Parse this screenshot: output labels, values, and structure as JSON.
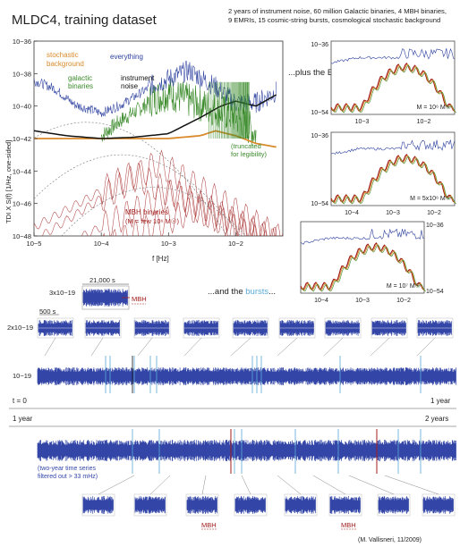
{
  "header": {
    "title": "MLDC4, training dataset",
    "description_lines": [
      "2 years of instrument noise, 60 million Galactic binaries, 4 MBH binaries,",
      "9 EMRIs, 15 cosmic-string bursts, cosmological stochastic background"
    ]
  },
  "colors": {
    "everything": "#2b3f9e",
    "galactic": "#3a8a2a",
    "stochastic": "#d98a2b",
    "noise": "#111111",
    "mbh": "#a01c1c",
    "bursts": "#5aa9d6",
    "timeseries": "#3346a8"
  },
  "chart_data": [
    {
      "type": "line",
      "ylabel": "TDI X S(f) [1/Hz, one-sided]",
      "xlabel": "f [Hz]",
      "xscale": "log",
      "yscale": "log",
      "xlim": [
        1e-05,
        0.05
      ],
      "ylim": [
        1e-48,
        1e-36
      ],
      "x_ticks": [
        "10−5",
        "10−4",
        "10−3",
        "10−2"
      ],
      "y_ticks": [
        "10−36",
        "10−38",
        "10−40",
        "10−42",
        "10−44",
        "10−46",
        "10−48"
      ],
      "series": [
        {
          "name": "everything",
          "color": "#2b3f9e",
          "x": [
            1e-05,
            2e-05,
            4e-05,
            0.0001,
            0.0002,
            0.0005,
            0.001,
            0.002,
            0.005,
            0.01,
            0.02,
            0.04
          ],
          "y": [
            3e-39,
            1e-39,
            1e-40,
            3e-41,
            1e-40,
            1e-39,
            3e-39,
            1e-38,
            1e-39,
            1e-40,
            1e-40,
            5e-40
          ]
        },
        {
          "name": "galactic binaries",
          "color": "#3a8a2a",
          "x": [
            0.0001,
            0.0002,
            0.0005,
            0.001,
            0.002,
            0.005,
            0.01,
            0.02
          ],
          "y": [
            1e-42,
            1e-41,
            1e-40,
            3e-40,
            1e-40,
            3e-41,
            1e-41,
            1e-42
          ]
        },
        {
          "name": "instrument noise",
          "color": "#111111",
          "x": [
            1e-05,
            3e-05,
            0.0001,
            0.0003,
            0.001,
            0.003,
            0.006,
            0.01,
            0.02,
            0.04
          ],
          "y": [
            3e-42,
            1.5e-42,
            1e-42,
            1.2e-42,
            2e-42,
            2e-41,
            1e-40,
            2e-40,
            1e-40,
            5e-40
          ]
        },
        {
          "name": "stochastic background",
          "color": "#d98a2b",
          "x": [
            1e-05,
            0.0001,
            0.001,
            0.003,
            0.005,
            0.01,
            0.02,
            0.04
          ],
          "y": [
            1e-42,
            1e-42,
            1e-42,
            1.5e-42,
            3e-42,
            1.5e-42,
            5e-43,
            3e-43
          ]
        }
      ],
      "annotations": {
        "stochastic": "stochastic background",
        "everything": "everything",
        "galactic": "galactic binaries",
        "noise": "instrument noise",
        "truncated": "(truncated for legibility)",
        "mbh": "MBH binaries",
        "mbh_mass": "(M = few 10⁶ M☉)"
      }
    },
    {
      "type": "line",
      "title": "...plus the EMRIs...",
      "panels": [
        {
          "mass_label": "M = 10⁶ M☉",
          "y_top": "10−36",
          "y_bottom": "10−54",
          "x_ticks": [
            "10−3",
            "10−2"
          ]
        },
        {
          "mass_label": "M = 5x10⁶ M☉",
          "y_top": "10−36",
          "y_bottom": "10−54",
          "x_ticks": [
            "10−4",
            "10−3",
            "10−2"
          ]
        },
        {
          "mass_label": "M = 10⁷ M☉",
          "y_top": "10−36",
          "y_bottom": "10−54",
          "x_ticks": [
            "10−4",
            "10−3",
            "10−2"
          ]
        }
      ]
    },
    {
      "type": "line",
      "title": "...and the bursts...",
      "title_prefix": "...and the ",
      "title_highlight": "bursts",
      "title_suffix": "...",
      "inset": {
        "amplitude": "3x10−19",
        "duration": "21,000 s",
        "label": "MBH"
      },
      "snippets": {
        "duration": "500 s",
        "amplitude": "2x10−19",
        "count": 8
      },
      "series_year1": {
        "amplitude": "10−19",
        "start": "t = 0",
        "end": "1 year"
      },
      "series_year2": {
        "start": "1 year",
        "end": "2 years",
        "note": "(two-year time series filtered out > 33 mHz)"
      },
      "bottom_snippets": {
        "count": 8,
        "labels": [
          "MBH",
          "MBH"
        ]
      }
    }
  ],
  "credit": "(M. Vallisneri, 11/2009)"
}
